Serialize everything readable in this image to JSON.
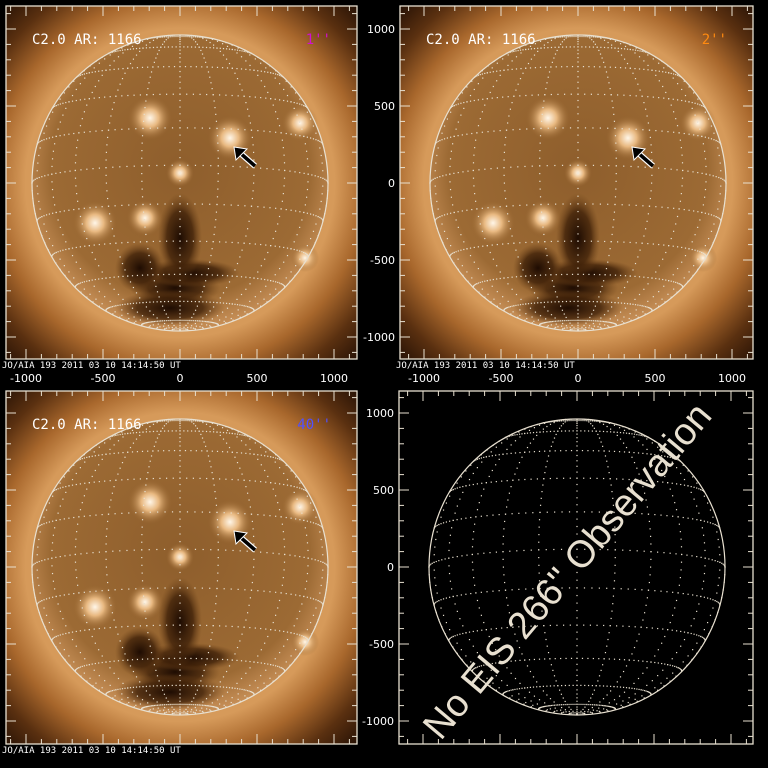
{
  "panels": [
    {
      "id": "top-left",
      "title": "C2.0 AR: 1166",
      "resolution": "1''",
      "resolution_color": "#d010d0",
      "has_image": true,
      "caption": "JO/AIA 193   2011 03 10 14:14:50 UT"
    },
    {
      "id": "top-right",
      "title": "C2.0 AR: 1166",
      "resolution": "2''",
      "resolution_color": "#ff8a10",
      "has_image": true,
      "caption": "JO/AIA 193   2011 03 10 14:14:50 UT"
    },
    {
      "id": "bottom-left",
      "title": "C2.0 AR: 1166",
      "resolution": "40''",
      "resolution_color": "#5050ff",
      "has_image": true,
      "caption": "JO/AIA 193   2011 03 10 14:14:50 UT"
    },
    {
      "id": "bottom-right",
      "has_image": false,
      "message": "No EIS 266'' Observation"
    }
  ],
  "axes": {
    "x_ticks": [
      "-1000",
      "-500",
      "0",
      "500",
      "1000"
    ],
    "y_ticks": [
      "1000",
      "500",
      "0",
      "-500",
      "-1000"
    ]
  },
  "colors": {
    "frame": "#e8e0d0",
    "arrow": "#000000"
  }
}
